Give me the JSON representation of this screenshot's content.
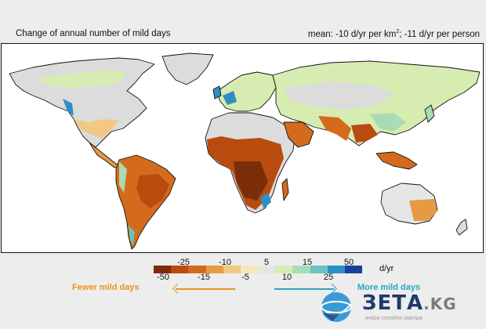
{
  "header": {
    "title": "Change of annual number of mild days",
    "mean_prefix": "mean: -10 d/yr per km",
    "mean_sup": "2",
    "mean_suffix": "; -11 d/yr per person"
  },
  "legend": {
    "top_ticks": [
      "-25",
      "-10",
      "5",
      "15",
      "50"
    ],
    "bottom_ticks": [
      "-50",
      "-15",
      "-5",
      "10",
      "25"
    ],
    "unit": "d/yr",
    "colors": [
      "#7a2e08",
      "#b94b0e",
      "#d46b1c",
      "#e79a44",
      "#f2c882",
      "#f6e8b8",
      "#e6e6e6",
      "#d7ecb0",
      "#a9dcb4",
      "#6cc2c0",
      "#2d8fc4",
      "#1b3f9a"
    ]
  },
  "annotations": {
    "fewer": "Fewer mild days",
    "more": "More mild days"
  },
  "watermark": {
    "brand": "ЗЕТА",
    "tld": ".KG",
    "tagline": "вчера сегодня завтра"
  },
  "palette": {
    "land_gray": "#dcdcdc",
    "ocean": "#ffffff"
  }
}
